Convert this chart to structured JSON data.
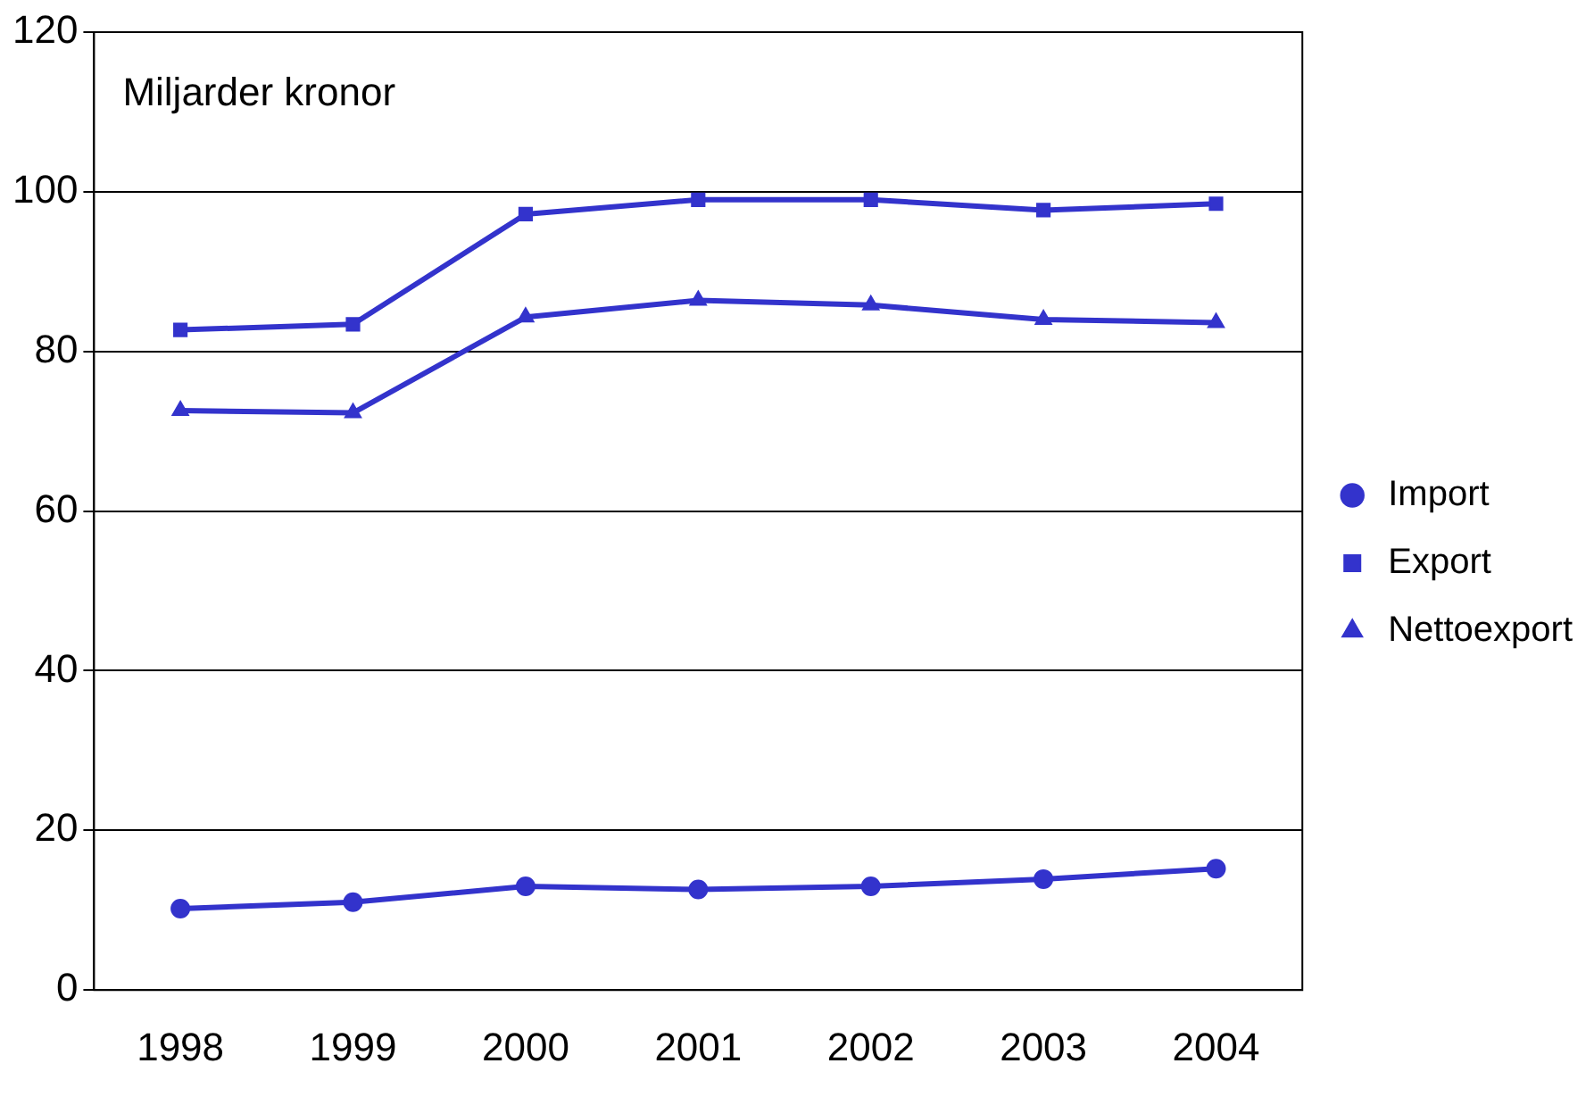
{
  "chart_data": {
    "type": "line",
    "ylabel": "Miljarder kronor",
    "categories": [
      "1998",
      "1999",
      "2000",
      "2001",
      "2002",
      "2003",
      "2004"
    ],
    "series": [
      {
        "name": "Import",
        "color": "#3333cc",
        "marker": "circle",
        "values": [
          10.2,
          11,
          13,
          12.6,
          13,
          13.9,
          15.2
        ]
      },
      {
        "name": "Export",
        "color": "#3333cc",
        "marker": "square",
        "values": [
          82.7,
          83.4,
          97.2,
          99,
          99,
          97.7,
          98.5
        ]
      },
      {
        "name": "Nettoexport",
        "color": "#3333cc",
        "marker": "triangle",
        "values": [
          72.6,
          72.3,
          84.3,
          86.4,
          85.8,
          84,
          83.6
        ]
      }
    ],
    "ylim": [
      0,
      120
    ],
    "yticks": [
      0,
      20,
      40,
      60,
      80,
      100,
      120
    ],
    "grid": "y",
    "legend": "right",
    "line_style": "solid"
  }
}
